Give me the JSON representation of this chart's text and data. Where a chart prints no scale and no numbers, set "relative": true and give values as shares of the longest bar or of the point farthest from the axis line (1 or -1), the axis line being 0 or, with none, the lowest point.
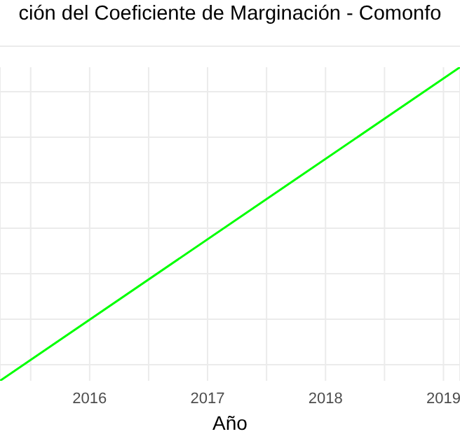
{
  "chart_data": {
    "type": "line",
    "title": "ción del Coeficiente de Marginación - Comonfo",
    "xlabel": "Año",
    "relative": true,
    "x": [
      2015.24,
      2019.14
    ],
    "series": [
      {
        "color": "#00ff00",
        "values": [
          0,
          1
        ]
      }
    ],
    "xlim": [
      2015.24,
      2019.14
    ],
    "xticks": [
      {
        "value": 2015.5,
        "label": null
      },
      2016,
      {
        "value": 2016.5,
        "label": null
      },
      2017,
      {
        "value": 2017.5,
        "label": null
      },
      2018,
      {
        "value": 2018.5,
        "label": null
      },
      2019
    ],
    "grid": true
  }
}
